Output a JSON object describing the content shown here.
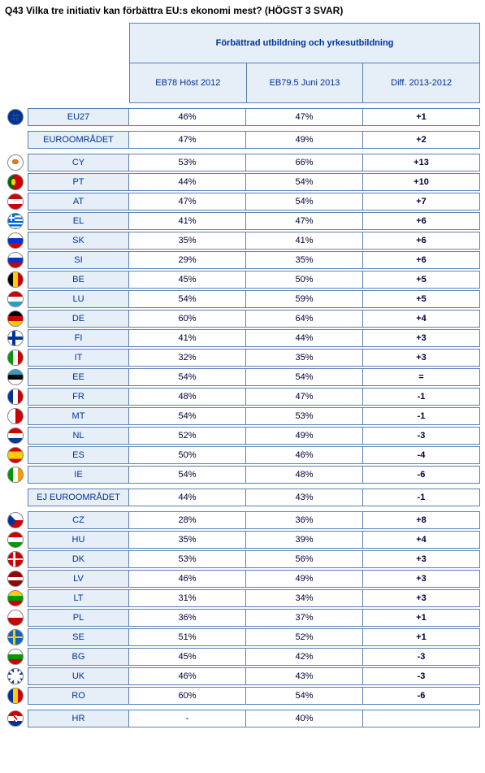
{
  "title": "Q43 Vilka tre initiativ kan förbättra EU:s ekonomi mest? (HÖGST 3 SVAR)",
  "header": {
    "main": "Förbättrad utbildning och yrkesutbildning",
    "col1": "EB78 Höst 2012",
    "col2": "EB79.5 Juni 2013",
    "col3": "Diff. 2013-2012"
  },
  "groups": [
    {
      "rows": [
        {
          "flag": "eu",
          "label": "EU27",
          "v1": "46%",
          "v2": "47%",
          "diff": "+1"
        }
      ]
    },
    {
      "rows": [
        {
          "flag": "",
          "label": "EUROOMRÅDET",
          "v1": "47%",
          "v2": "49%",
          "diff": "+2"
        }
      ]
    },
    {
      "rows": [
        {
          "flag": "cy",
          "label": "CY",
          "v1": "53%",
          "v2": "66%",
          "diff": "+13"
        },
        {
          "flag": "pt",
          "label": "PT",
          "v1": "44%",
          "v2": "54%",
          "diff": "+10"
        },
        {
          "flag": "at",
          "label": "AT",
          "v1": "47%",
          "v2": "54%",
          "diff": "+7"
        },
        {
          "flag": "el",
          "label": "EL",
          "v1": "41%",
          "v2": "47%",
          "diff": "+6"
        },
        {
          "flag": "sk",
          "label": "SK",
          "v1": "35%",
          "v2": "41%",
          "diff": "+6"
        },
        {
          "flag": "si",
          "label": "SI",
          "v1": "29%",
          "v2": "35%",
          "diff": "+6"
        },
        {
          "flag": "be",
          "label": "BE",
          "v1": "45%",
          "v2": "50%",
          "diff": "+5"
        },
        {
          "flag": "lu",
          "label": "LU",
          "v1": "54%",
          "v2": "59%",
          "diff": "+5"
        },
        {
          "flag": "de",
          "label": "DE",
          "v1": "60%",
          "v2": "64%",
          "diff": "+4"
        },
        {
          "flag": "fi",
          "label": "FI",
          "v1": "41%",
          "v2": "44%",
          "diff": "+3"
        },
        {
          "flag": "it",
          "label": "IT",
          "v1": "32%",
          "v2": "35%",
          "diff": "+3"
        },
        {
          "flag": "ee",
          "label": "EE",
          "v1": "54%",
          "v2": "54%",
          "diff": "="
        },
        {
          "flag": "fr",
          "label": "FR",
          "v1": "48%",
          "v2": "47%",
          "diff": "-1"
        },
        {
          "flag": "mt",
          "label": "MT",
          "v1": "54%",
          "v2": "53%",
          "diff": "-1"
        },
        {
          "flag": "nl",
          "label": "NL",
          "v1": "52%",
          "v2": "49%",
          "diff": "-3"
        },
        {
          "flag": "es",
          "label": "ES",
          "v1": "50%",
          "v2": "46%",
          "diff": "-4"
        },
        {
          "flag": "ie",
          "label": "IE",
          "v1": "54%",
          "v2": "48%",
          "diff": "-6"
        }
      ]
    },
    {
      "rows": [
        {
          "flag": "",
          "label": "EJ EUROOMRÅDET",
          "v1": "44%",
          "v2": "43%",
          "diff": "-1"
        }
      ]
    },
    {
      "rows": [
        {
          "flag": "cz",
          "label": "CZ",
          "v1": "28%",
          "v2": "36%",
          "diff": "+8"
        },
        {
          "flag": "hu",
          "label": "HU",
          "v1": "35%",
          "v2": "39%",
          "diff": "+4"
        },
        {
          "flag": "dk",
          "label": "DK",
          "v1": "53%",
          "v2": "56%",
          "diff": "+3"
        },
        {
          "flag": "lv",
          "label": "LV",
          "v1": "46%",
          "v2": "49%",
          "diff": "+3"
        },
        {
          "flag": "lt",
          "label": "LT",
          "v1": "31%",
          "v2": "34%",
          "diff": "+3"
        },
        {
          "flag": "pl",
          "label": "PL",
          "v1": "36%",
          "v2": "37%",
          "diff": "+1"
        },
        {
          "flag": "se",
          "label": "SE",
          "v1": "51%",
          "v2": "52%",
          "diff": "+1"
        },
        {
          "flag": "bg",
          "label": "BG",
          "v1": "45%",
          "v2": "42%",
          "diff": "-3"
        },
        {
          "flag": "uk",
          "label": "UK",
          "v1": "46%",
          "v2": "43%",
          "diff": "-3"
        },
        {
          "flag": "ro",
          "label": "RO",
          "v1": "60%",
          "v2": "54%",
          "diff": "-6"
        }
      ]
    },
    {
      "rows": [
        {
          "flag": "hr",
          "label": "HR",
          "v1": "-",
          "v2": "40%",
          "diff": ""
        }
      ]
    }
  ]
}
